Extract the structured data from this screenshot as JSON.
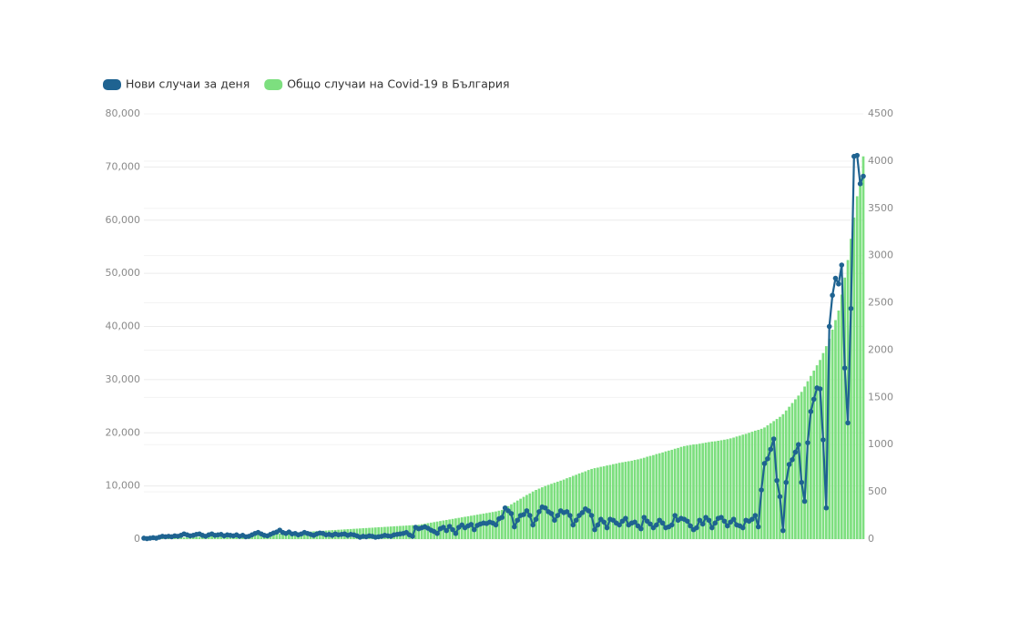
{
  "chart_data": {
    "type": "combo",
    "categories": [
      null,
      null,
      null,
      null,
      null,
      null,
      null,
      null,
      null,
      null,
      null,
      null,
      null,
      null,
      null,
      null,
      null,
      null,
      null,
      null,
      null,
      null,
      null,
      null,
      null,
      null,
      null,
      null,
      null,
      null,
      null,
      null,
      null,
      null,
      null,
      null,
      null,
      null,
      null,
      null,
      null,
      null,
      null,
      null,
      null,
      null,
      null,
      null,
      null,
      null,
      null,
      null,
      null,
      null,
      null,
      null,
      null,
      null,
      null,
      null,
      null,
      null,
      null,
      null,
      null,
      null,
      null,
      null,
      null,
      null,
      null,
      null,
      null,
      null,
      null,
      null,
      null,
      null,
      null,
      null,
      null,
      null,
      null,
      null,
      null,
      null,
      null,
      null,
      null,
      null,
      null,
      null,
      null,
      null,
      null,
      null,
      null,
      null,
      null,
      null,
      null,
      null,
      null,
      null,
      null,
      null,
      null,
      null,
      null,
      null,
      null,
      null,
      null,
      null,
      null,
      null,
      null,
      null,
      null,
      null,
      null,
      null,
      null,
      null,
      null,
      null,
      null,
      null,
      null,
      null,
      null,
      null,
      null,
      null,
      null,
      null,
      null,
      null,
      null,
      null,
      null,
      null,
      null,
      null,
      null,
      null,
      null,
      null,
      null,
      null,
      null,
      null,
      null,
      null,
      null,
      null,
      null,
      null,
      null,
      null,
      null,
      null,
      null,
      null,
      null,
      null,
      null,
      null,
      null,
      null,
      null,
      null,
      null,
      null,
      null,
      null,
      null,
      null,
      null,
      null,
      null,
      null,
      null,
      null,
      null,
      null,
      null,
      null,
      null,
      null,
      null,
      null,
      null,
      null,
      null,
      null,
      null,
      null,
      null,
      null,
      null,
      null,
      null,
      null,
      null,
      null,
      null,
      null,
      null,
      null,
      null,
      null,
      null,
      null,
      null,
      null,
      null,
      null,
      null,
      null,
      null,
      null,
      null,
      null,
      null,
      null,
      null,
      null,
      null,
      null,
      null,
      null,
      null,
      null
    ],
    "series": [
      {
        "name": "Нови случаи за деня",
        "type": "line",
        "axis": "y2",
        "color": "#1f6391",
        "values": [
          10,
          5,
          10,
          15,
          10,
          20,
          30,
          25,
          30,
          25,
          35,
          30,
          40,
          55,
          45,
          35,
          40,
          50,
          55,
          40,
          30,
          45,
          55,
          40,
          45,
          50,
          35,
          45,
          40,
          35,
          45,
          30,
          40,
          25,
          30,
          45,
          60,
          70,
          55,
          40,
          35,
          50,
          65,
          75,
          95,
          70,
          60,
          75,
          55,
          60,
          45,
          55,
          70,
          60,
          50,
          40,
          55,
          65,
          60,
          45,
          50,
          40,
          55,
          45,
          50,
          55,
          40,
          50,
          45,
          35,
          20,
          30,
          25,
          35,
          30,
          20,
          25,
          30,
          40,
          35,
          30,
          45,
          50,
          55,
          60,
          70,
          45,
          30,
          125,
          110,
          120,
          130,
          115,
          95,
          80,
          60,
          110,
          125,
          90,
          135,
          100,
          60,
          125,
          150,
          120,
          140,
          155,
          100,
          145,
          160,
          170,
          165,
          180,
          170,
          150,
          215,
          230,
          330,
          300,
          270,
          130,
          200,
          250,
          260,
          300,
          250,
          150,
          210,
          290,
          340,
          330,
          290,
          270,
          200,
          250,
          300,
          280,
          290,
          250,
          150,
          200,
          250,
          280,
          320,
          300,
          250,
          100,
          150,
          210,
          180,
          120,
          210,
          200,
          170,
          150,
          190,
          220,
          150,
          170,
          180,
          140,
          110,
          230,
          190,
          160,
          120,
          150,
          200,
          170,
          120,
          130,
          150,
          250,
          200,
          220,
          210,
          190,
          140,
          100,
          120,
          200,
          160,
          230,
          200,
          120,
          170,
          220,
          230,
          190,
          140,
          180,
          210,
          150,
          140,
          120,
          200,
          190,
          210,
          250,
          130,
          520,
          800,
          850,
          950,
          1060,
          620,
          450,
          90,
          600,
          790,
          840,
          920,
          1000,
          600,
          400,
          1020,
          1350,
          1480,
          1600,
          1590,
          1050,
          330,
          2250,
          2580,
          2760,
          2700,
          2900,
          1810,
          1230,
          2440,
          4050,
          4060,
          3760,
          3840
        ]
      },
      {
        "name": "Общо случаи на Covid-19 в България",
        "type": "bar",
        "axis": "y",
        "color": "#7ddf7f",
        "values": [
          0,
          20,
          50,
          70,
          100,
          120,
          140,
          170,
          190,
          210,
          240,
          260,
          290,
          310,
          330,
          360,
          380,
          400,
          430,
          450,
          480,
          500,
          520,
          550,
          570,
          600,
          620,
          640,
          670,
          690,
          710,
          740,
          760,
          790,
          810,
          830,
          860,
          880,
          900,
          930,
          950,
          980,
          1000,
          1040,
          1070,
          1110,
          1150,
          1180,
          1220,
          1250,
          1290,
          1330,
          1360,
          1400,
          1430,
          1470,
          1510,
          1540,
          1580,
          1610,
          1650,
          1690,
          1720,
          1760,
          1790,
          1830,
          1870,
          1900,
          1940,
          1970,
          2010,
          2050,
          2080,
          2120,
          2150,
          2190,
          2230,
          2260,
          2300,
          2330,
          2370,
          2410,
          2440,
          2480,
          2510,
          2550,
          2590,
          2620,
          2660,
          2700,
          2800,
          2900,
          3000,
          3100,
          3200,
          3300,
          3400,
          3500,
          3600,
          3700,
          3800,
          3900,
          4000,
          4100,
          4200,
          4300,
          4400,
          4500,
          4600,
          4700,
          4800,
          4900,
          5000,
          5100,
          5200,
          5350,
          5500,
          5850,
          6200,
          6550,
          6900,
          7250,
          7600,
          7950,
          8300,
          8600,
          8950,
          9250,
          9500,
          9750,
          10000,
          10200,
          10400,
          10600,
          10800,
          11000,
          11200,
          11450,
          11650,
          11900,
          12100,
          12350,
          12550,
          12750,
          13000,
          13200,
          13350,
          13450,
          13600,
          13700,
          13850,
          13950,
          14100,
          14200,
          14350,
          14450,
          14550,
          14650,
          14750,
          14900,
          15000,
          15150,
          15300,
          15500,
          15650,
          15800,
          16000,
          16150,
          16300,
          16500,
          16650,
          16800,
          17000,
          17150,
          17350,
          17500,
          17600,
          17700,
          17800,
          17850,
          17950,
          18050,
          18150,
          18250,
          18350,
          18400,
          18500,
          18600,
          18700,
          18800,
          18950,
          19100,
          19300,
          19450,
          19650,
          19800,
          20000,
          20200,
          20400,
          20550,
          20750,
          21000,
          21400,
          21800,
          22200,
          22600,
          23000,
          23500,
          24200,
          24900,
          25600,
          26300,
          27000,
          27700,
          28700,
          29700,
          30700,
          31700,
          32700,
          33700,
          35000,
          36300,
          37700,
          39400,
          41200,
          43000,
          46000,
          49200,
          52500,
          56500,
          60500,
          64500,
          68000,
          72000
        ]
      }
    ],
    "ylim": [
      0,
      80000
    ],
    "yticks": [
      0,
      {
        "value": 10000,
        "label": "10,000"
      },
      {
        "value": 20000,
        "label": "20,000"
      },
      {
        "value": 30000,
        "label": "30,000"
      },
      {
        "value": 40000,
        "label": "40,000"
      },
      {
        "value": 50000,
        "label": "50,000"
      },
      {
        "value": 60000,
        "label": "60,000"
      },
      {
        "value": 70000,
        "label": "70,000"
      },
      {
        "value": 80000,
        "label": "80,000"
      }
    ],
    "y2lim": [
      0,
      4500
    ],
    "y2ticks": [
      0,
      500,
      1000,
      1500,
      2000,
      2500,
      3000,
      3500,
      4000,
      4500
    ],
    "grid": true,
    "legend": "top-left"
  }
}
